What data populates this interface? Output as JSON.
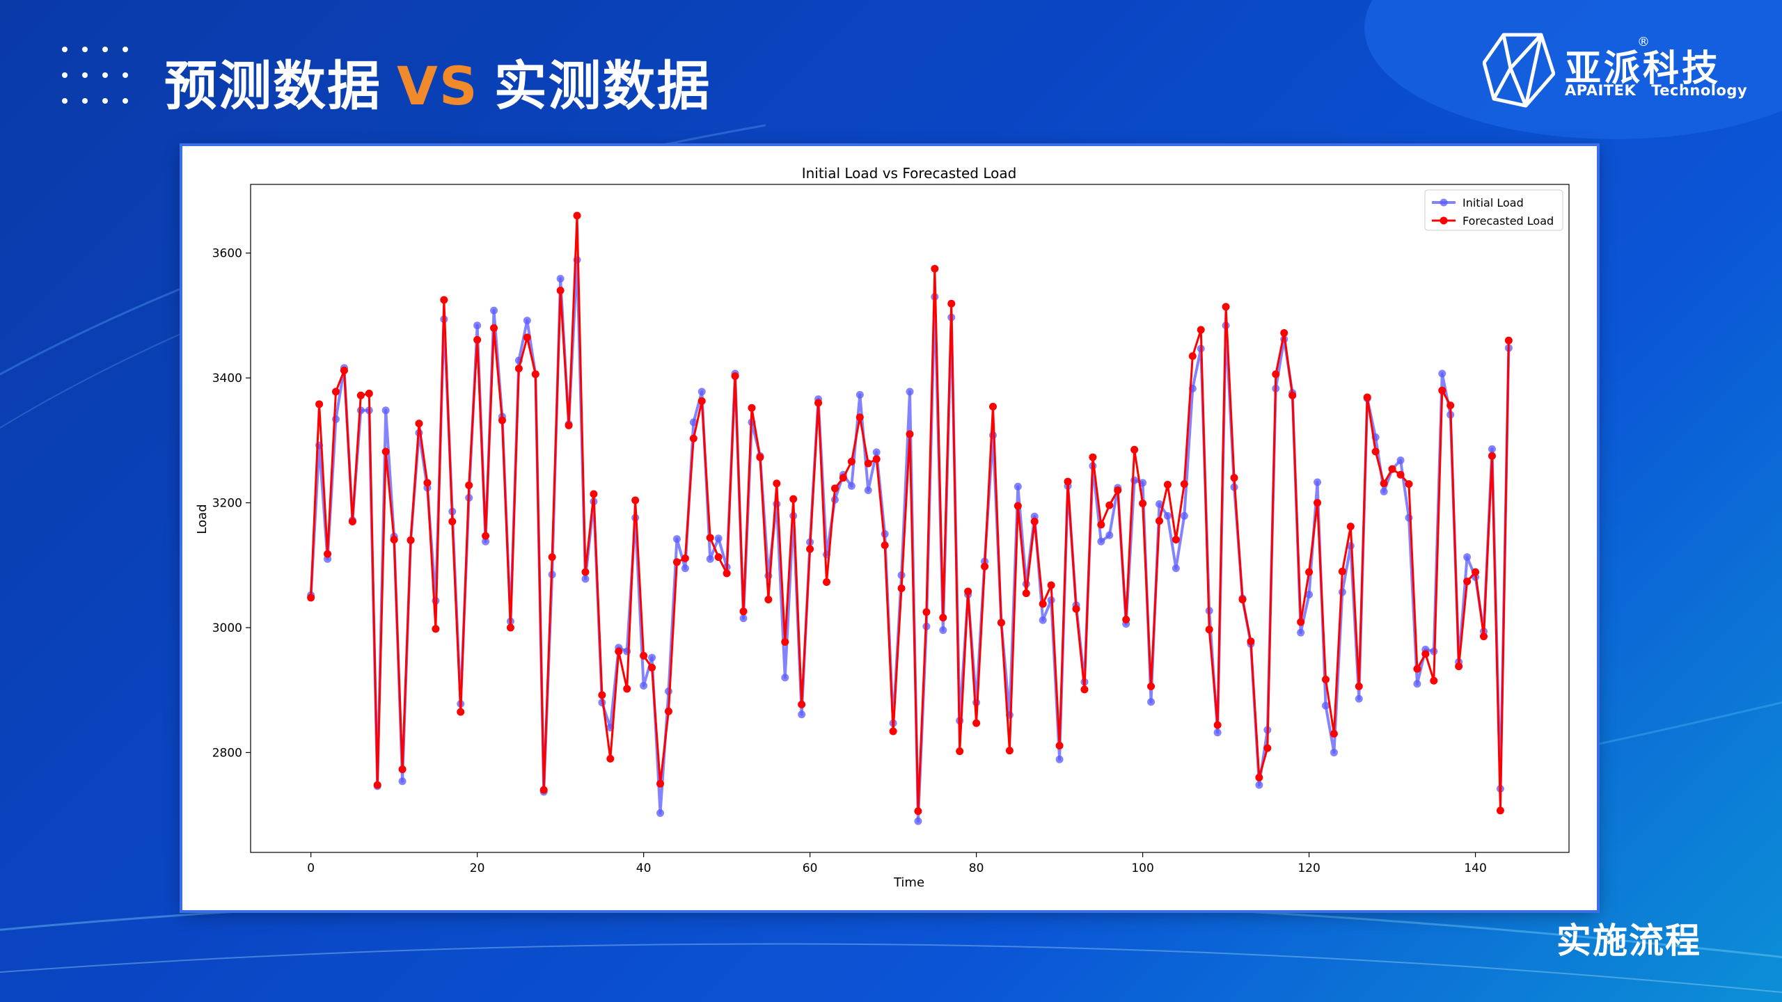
{
  "slide": {
    "title_left": "预测数据",
    "title_vs": "VS",
    "title_right": "实测数据",
    "footer_tag": "实施流程",
    "accent_color": "#f08a2a"
  },
  "logo": {
    "name_cn": "亚派科技",
    "registered": "®",
    "brand_en": "APAITEK",
    "tagline_en": "Technology",
    "icon": "crystal-logo-icon"
  },
  "chart_data": {
    "type": "line",
    "title": "Initial Load vs Forecasted Load",
    "xlabel": "Time",
    "ylabel": "Load",
    "xlim": [
      -7.25,
      151.25
    ],
    "ylim": [
      2640,
      3710
    ],
    "xticks": [
      0,
      20,
      40,
      60,
      80,
      100,
      120,
      140
    ],
    "yticks": [
      2800,
      3000,
      3200,
      3400,
      3600
    ],
    "grid": false,
    "legend_position": "top-right",
    "series": [
      {
        "name": "Initial Load",
        "color": "#5a5aff",
        "values": [
          3052,
          3292,
          3110,
          3334,
          3416,
          3172,
          3348,
          3348,
          2746,
          3348,
          3146,
          2754,
          3140,
          3312,
          3224,
          3043,
          3494,
          3186,
          2878,
          3208,
          3484,
          3138,
          3508,
          3338,
          3010,
          3428,
          3492,
          3406,
          2737,
          3085,
          3559,
          3326,
          3589,
          3078,
          3202,
          2880,
          2840,
          2968,
          2962,
          3176,
          2907,
          2952,
          2703,
          2898,
          3142,
          3095,
          3329,
          3378,
          3110,
          3143,
          3097,
          3407,
          3015,
          3329,
          3275,
          3083,
          3198,
          2920,
          3179,
          2861,
          3137,
          3366,
          3117,
          3205,
          3245,
          3227,
          3373,
          3220,
          3281,
          3150,
          2847,
          3084,
          3378,
          2690,
          3002,
          3530,
          2996,
          3497,
          2851,
          3053,
          2880,
          3106,
          3308,
          3008,
          2860,
          3226,
          3070,
          3178,
          3012,
          3044,
          2789,
          3227,
          3036,
          2913,
          3259,
          3138,
          3148,
          3224,
          3006,
          3236,
          3232,
          2881,
          3198,
          3179,
          3095,
          3179,
          3383,
          3447,
          3027,
          2832,
          3484,
          3225,
          3047,
          2974,
          2748,
          2836,
          3383,
          3462,
          3376,
          2992,
          3053,
          3233,
          2875,
          2800,
          3057,
          3131,
          2886,
          3367,
          3305,
          3218,
          3254,
          3268,
          3176,
          2910,
          2965,
          2962,
          3407,
          3341,
          2945,
          3113,
          3081,
          2994,
          3286,
          2742,
          3448
        ]
      },
      {
        "name": "Forecasted Load",
        "color": "#ff0000",
        "values": [
          3048,
          3358,
          3118,
          3378,
          3412,
          3170,
          3372,
          3375,
          2748,
          3282,
          3141,
          2773,
          3140,
          3327,
          3232,
          2998,
          3525,
          3170,
          2865,
          3228,
          3461,
          3147,
          3480,
          3332,
          3000,
          3415,
          3465,
          3406,
          2740,
          3113,
          3540,
          3324,
          3660,
          3089,
          3214,
          2892,
          2790,
          2962,
          2902,
          3204,
          2955,
          2936,
          2750,
          2866,
          3105,
          3111,
          3303,
          3363,
          3144,
          3113,
          3087,
          3403,
          3026,
          3352,
          3273,
          3045,
          3231,
          2977,
          3206,
          2877,
          3126,
          3360,
          3073,
          3223,
          3240,
          3266,
          3337,
          3263,
          3270,
          3132,
          2834,
          3063,
          3310,
          2706,
          3025,
          3575,
          3016,
          3519,
          2802,
          3058,
          2847,
          3098,
          3354,
          3008,
          2803,
          3195,
          3055,
          3170,
          3038,
          3068,
          2811,
          3234,
          3030,
          2901,
          3273,
          3165,
          3196,
          3220,
          3013,
          3285,
          3199,
          2906,
          3171,
          3229,
          3141,
          3230,
          3435,
          3477,
          2997,
          2844,
          3514,
          3240,
          3045,
          2978,
          2760,
          2807,
          3406,
          3472,
          3372,
          3009,
          3089,
          3200,
          2917,
          2830,
          3090,
          3162,
          2906,
          3369,
          3282,
          3231,
          3254,
          3245,
          3230,
          2934,
          2958,
          2915,
          3380,
          3356,
          2938,
          3074,
          3089,
          2986,
          3275,
          2707,
          3460
        ]
      }
    ]
  }
}
